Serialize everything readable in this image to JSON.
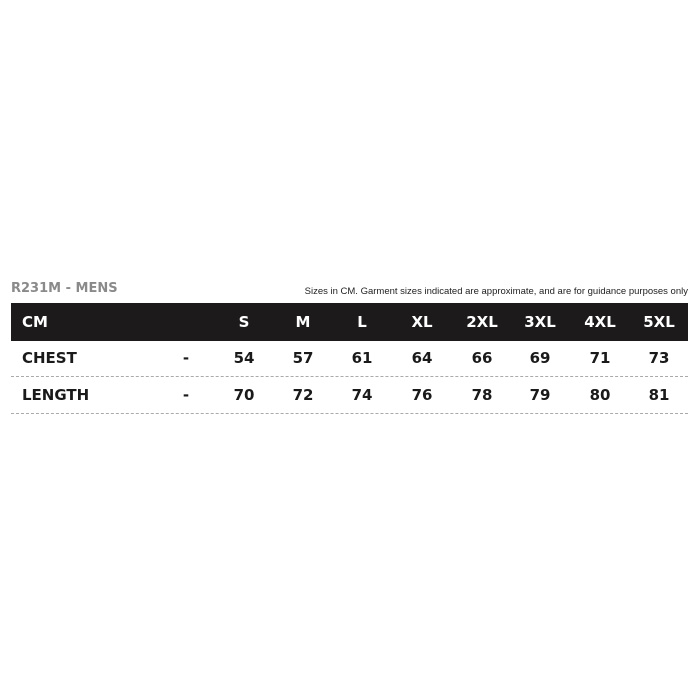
{
  "title": "R231M - MENS",
  "note": "Sizes in CM. Garment sizes indicated are approximate, and are for guidance purposes only",
  "header": {
    "label": "CM",
    "sizes": [
      "S",
      "M",
      "L",
      "XL",
      "2XL",
      "3XL",
      "4XL",
      "5XL"
    ]
  },
  "rows": [
    {
      "label": "CHEST",
      "dash": "-",
      "values": [
        "54",
        "57",
        "61",
        "64",
        "66",
        "69",
        "71",
        "73"
      ]
    },
    {
      "label": "LENGTH",
      "dash": "-",
      "values": [
        "70",
        "72",
        "74",
        "76",
        "78",
        "79",
        "80",
        "81"
      ]
    }
  ]
}
